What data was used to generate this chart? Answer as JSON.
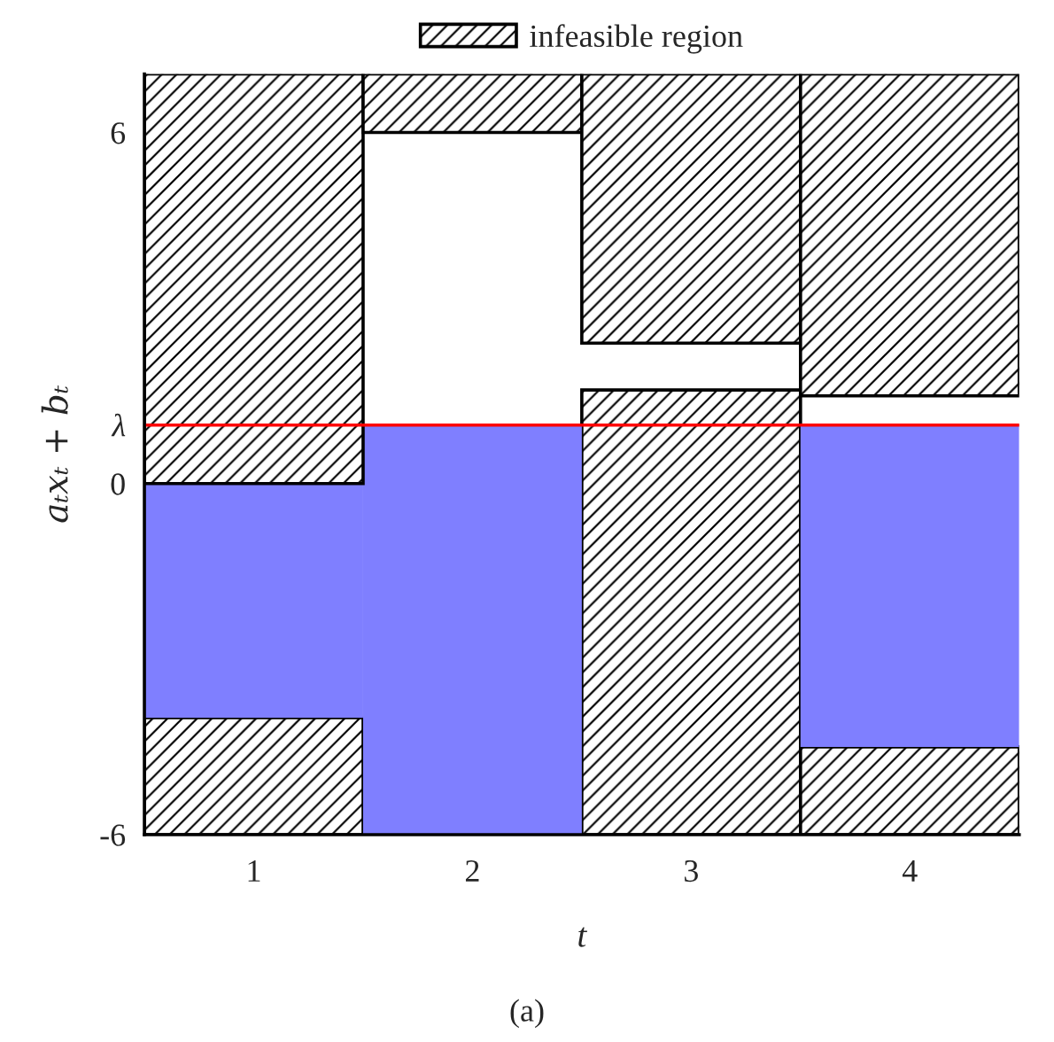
{
  "chart_data": {
    "type": "bar",
    "xlabel": "t",
    "ylabel": "aₜxₜ + bₜ",
    "categories": [
      "1",
      "2",
      "3",
      "4"
    ],
    "ylim": [
      -6,
      7
    ],
    "yticks": [
      -6,
      0,
      {
        "value": 1,
        "label": "λ"
      },
      6
    ],
    "series": [
      {
        "name": "infeasible region",
        "color": "#000000",
        "base": [
          -6,
          null,
          -6,
          -6
        ],
        "values": [
          2,
          null,
          7.6,
          1.5
        ]
      },
      {
        "color": "#7f7fff",
        "base": [
          -4,
          -6,
          null,
          -4.5
        ],
        "values": [
          4,
          7,
          null,
          5.5
        ]
      },
      {
        "color": "#000000",
        "base": [
          0,
          6,
          2.4,
          1.5
        ],
        "values": [
          7,
          1,
          4.6,
          5.5
        ]
      }
    ],
    "ref_lines": [
      {
        "axis": "y",
        "value": 1,
        "color": "#ff0000"
      }
    ],
    "legend": "top",
    "grid": false,
    "annotations": [
      "(a)"
    ]
  }
}
